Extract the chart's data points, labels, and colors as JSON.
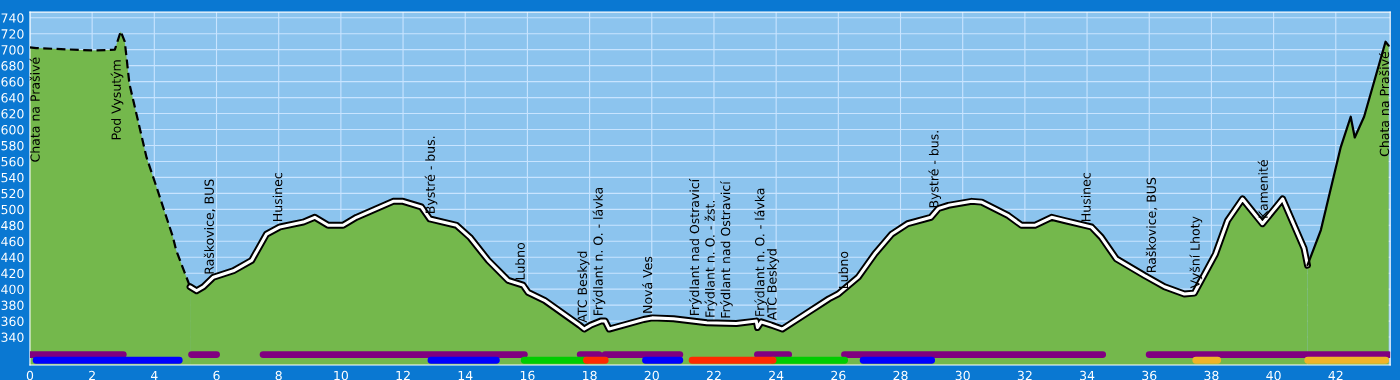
{
  "chart_data": {
    "type": "area",
    "xlim": [
      0,
      43.75
    ],
    "ylim": [
      305,
      747
    ],
    "xticks": [
      0,
      2,
      4,
      6,
      8,
      10,
      12,
      14,
      16,
      18,
      20,
      22,
      24,
      26,
      28,
      30,
      32,
      34,
      36,
      38,
      40,
      42
    ],
    "yticks": [
      340,
      360,
      380,
      400,
      420,
      440,
      460,
      480,
      500,
      520,
      540,
      560,
      580,
      600,
      620,
      640,
      660,
      680,
      700,
      720,
      740
    ],
    "grid": true,
    "legend": false,
    "series": [
      {
        "color": "#000000",
        "line_style": "dashed",
        "x": [
          0,
          0.2,
          2.04,
          2.73,
          2.92,
          3.05,
          3.2,
          3.75,
          4.07,
          4.6,
          4.7,
          5.15
        ],
        "values": [
          703,
          702,
          699,
          700,
          723,
          710,
          657,
          565,
          528,
          465,
          449,
          403
        ]
      },
      {
        "color": "#ffffff",
        "line_style": "solid",
        "x": [
          5.15,
          5.36,
          5.58,
          5.9,
          6.54,
          7.13,
          7.61,
          8.04,
          8.79,
          9.16,
          9.59,
          10.07,
          10.5,
          11.68,
          12.0,
          12.59,
          12.86,
          13.72,
          14.15,
          14.74,
          15.38,
          15.86,
          16.02,
          16.55,
          17.67,
          17.83,
          18.04,
          18.36,
          18.5,
          18.63,
          19.74,
          20.01,
          20.7,
          21.77,
          22.72,
          23.36,
          23.4,
          23.52,
          23.84,
          24.2,
          24.95,
          25.7,
          26.0,
          26.64,
          27.17,
          27.72,
          28.23,
          28.98,
          29.22,
          29.54,
          30.29,
          30.61,
          31.47,
          31.89,
          32.32,
          32.86,
          33.28,
          34.14,
          34.46,
          34.94,
          35.85,
          36.49,
          37.13,
          37.45,
          38.13,
          38.52,
          39.0,
          39.64,
          40.29,
          40.98,
          41.09
        ],
        "values": [
          403,
          398,
          403,
          415,
          423,
          436,
          469,
          478,
          484,
          490,
          480,
          480,
          490,
          510,
          510,
          503,
          488,
          480,
          465,
          436,
          411,
          405,
          396,
          386,
          355,
          350,
          355,
          360,
          360,
          350,
          362,
          364,
          363,
          358,
          357,
          360,
          352,
          359,
          355,
          350,
          369,
          388,
          394,
          415,
          444,
          469,
          482,
          490,
          501,
          505,
          510,
          509,
          492,
          480,
          480,
          490,
          486,
          478,
          465,
          438,
          417,
          403,
          394,
          395,
          444,
          486,
          513,
          482,
          513,
          451,
          430
        ]
      },
      {
        "color": "#000000",
        "line_style": "solid",
        "x": [
          41.09,
          41.52,
          42.16,
          42.48,
          42.61,
          42.91,
          43.6,
          43.7
        ],
        "values": [
          430,
          474,
          578,
          616,
          590,
          616,
          710,
          705
        ]
      },
      {
        "type": "line",
        "color": "#800080",
        "line_style": "solid",
        "x": [
          0,
          3.0,
          4.0,
          5.2,
          6.0,
          7.0,
          7.5,
          15.9,
          16.8,
          17.7,
          18.3,
          18.4,
          18.5,
          20.9,
          22.0,
          23.4,
          24.4,
          25.0,
          26.2,
          34.5,
          35.0,
          36.0,
          43.7
        ],
        "values": [
          318,
          318,
          null,
          318,
          318,
          null,
          318,
          318,
          null,
          318,
          318,
          null,
          318,
          318,
          null,
          318,
          318,
          null,
          318,
          318,
          null,
          318,
          318
        ]
      },
      {
        "type": "line",
        "color": "#0000ff",
        "line_style": "solid",
        "x": [
          0.2,
          4.8,
          9.0,
          12.9,
          15.0,
          17.0,
          19.8,
          20.9,
          24.0,
          26.8,
          29.0
        ],
        "values": [
          311,
          311,
          null,
          311,
          311,
          null,
          311,
          311,
          null,
          311,
          311
        ]
      },
      {
        "type": "line",
        "color": "#00cc00",
        "line_style": "solid",
        "x": [
          15.9,
          17.9,
          21.0,
          23.9,
          26.2
        ],
        "values": [
          311,
          311,
          null,
          311,
          311
        ]
      },
      {
        "type": "line",
        "color": "#ff2a00",
        "line_style": "solid",
        "x": [
          17.9,
          18.5,
          20.0,
          21.3,
          23.9
        ],
        "values": [
          311,
          311,
          null,
          311,
          311
        ]
      },
      {
        "type": "line",
        "color": "#f0b428",
        "line_style": "solid",
        "x": [
          37.5,
          38.2,
          40.0,
          41.1,
          43.6
        ],
        "values": [
          311,
          311,
          null,
          311,
          311
        ]
      }
    ],
    "annotations": [
      {
        "text": "Chata na Prašivé",
        "x": 0.2,
        "y": 703
      },
      {
        "text": "Pod Vysutým",
        "x": 2.8,
        "y": 700
      },
      {
        "text": "Raškovice, BUS",
        "x": 5.8,
        "y": 412
      },
      {
        "text": "Husinec",
        "x": 8.0,
        "y": 478
      },
      {
        "text": "Bystré - bus.",
        "x": 12.9,
        "y": 488
      },
      {
        "text": "Lubno",
        "x": 15.8,
        "y": 405
      },
      {
        "text": "ATC Beskyd",
        "x": 17.8,
        "y": 352
      },
      {
        "text": "Frýdlant n. O. - lávka",
        "x": 18.3,
        "y": 360
      },
      {
        "text": "Nová Ves",
        "x": 19.9,
        "y": 363
      },
      {
        "text": "Frýdlant nad Ostravicí",
        "x": 21.4,
        "y": 360
      },
      {
        "text": "Frýdlant n. O. - žst.",
        "x": 21.9,
        "y": 358
      },
      {
        "text": "Frýdlant nad Ostravicí",
        "x": 22.4,
        "y": 357
      },
      {
        "text": "Frýdlant n. O. - lávka",
        "x": 23.5,
        "y": 359
      },
      {
        "text": "ATC Beskyd",
        "x": 23.9,
        "y": 355
      },
      {
        "text": "Lubno",
        "x": 26.2,
        "y": 394
      },
      {
        "text": "Bystré - bus.",
        "x": 29.1,
        "y": 495
      },
      {
        "text": "Husinec",
        "x": 34.0,
        "y": 478
      },
      {
        "text": "Raškovice, BUS",
        "x": 36.1,
        "y": 414
      },
      {
        "text": "Vyšní Lhoty",
        "x": 37.5,
        "y": 395
      },
      {
        "text": "Kamenité",
        "x": 39.7,
        "y": 482
      },
      {
        "text": "Chata na Prašivé",
        "x": 43.6,
        "y": 710
      }
    ]
  }
}
